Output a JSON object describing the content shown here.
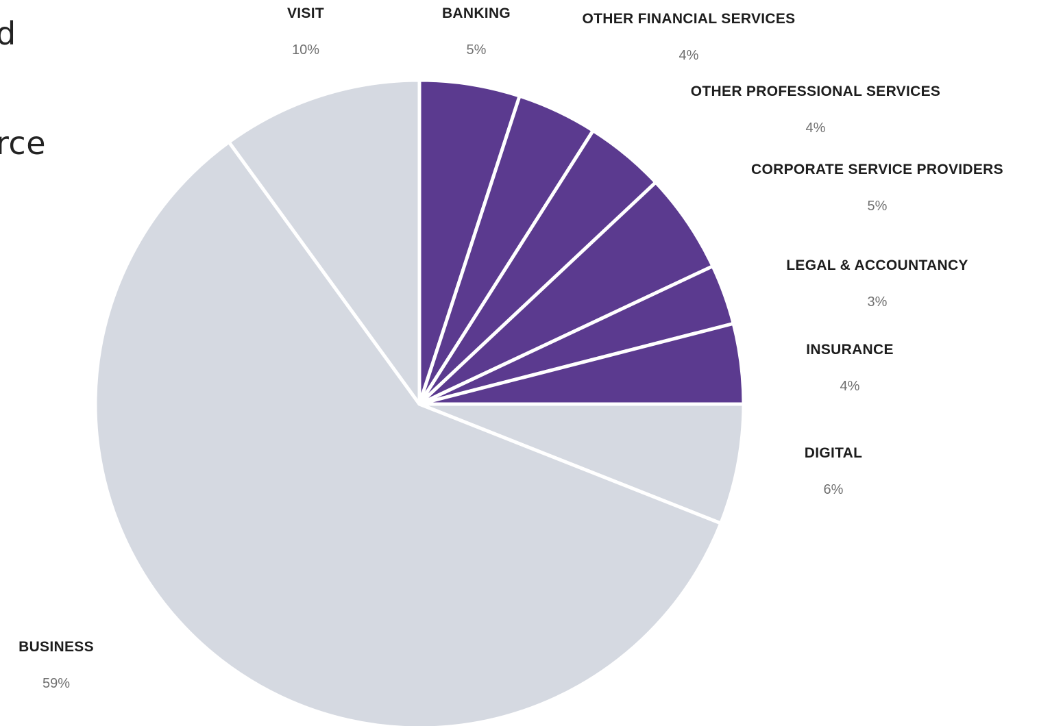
{
  "page": {
    "cut_text_1": "d",
    "cut_text_2": "rce"
  },
  "chart_data": {
    "type": "pie",
    "start_angle_deg": 0,
    "direction": "clockwise",
    "colors": {
      "highlight": "#5b3a8f",
      "base": "#d5d9e1",
      "separator": "#ffffff"
    },
    "slices": [
      {
        "label": "BANKING",
        "value": 5,
        "display": "5%",
        "group": "highlight"
      },
      {
        "label": "OTHER FINANCIAL SERVICES",
        "value": 4,
        "display": "4%",
        "group": "highlight"
      },
      {
        "label": "OTHER PROFESSIONAL SERVICES",
        "value": 4,
        "display": "4%",
        "group": "highlight"
      },
      {
        "label": "CORPORATE SERVICE PROVIDERS",
        "value": 5,
        "display": "5%",
        "group": "highlight"
      },
      {
        "label": "LEGAL & ACCOUNTANCY",
        "value": 3,
        "display": "3%",
        "group": "highlight"
      },
      {
        "label": "INSURANCE",
        "value": 4,
        "display": "4%",
        "group": "highlight"
      },
      {
        "label": "DIGITAL",
        "value": 6,
        "display": "6%",
        "group": "base"
      },
      {
        "label": "BUSINESS",
        "value": 59,
        "display": "59%",
        "group": "base"
      },
      {
        "label": "VISIT",
        "value": 10,
        "display": "10%",
        "group": "base"
      }
    ]
  }
}
